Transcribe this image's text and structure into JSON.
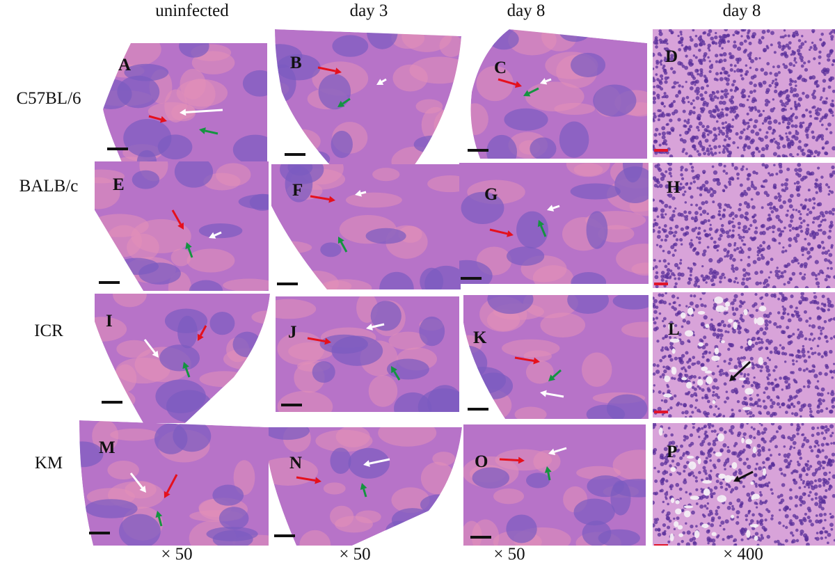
{
  "columns": {
    "uninfected": "uninfected",
    "day3": "day 3",
    "day8": "day 8",
    "day8_high": "day 8"
  },
  "rows": {
    "c57": "C57BL/6",
    "balb": "BALB/c",
    "icr": "ICR",
    "km": "KM"
  },
  "magnifications": {
    "col1": "× 50",
    "col2": "× 50",
    "col3": "× 50",
    "col4": "× 400"
  },
  "panels": {
    "A": "A",
    "B": "B",
    "C": "C",
    "D": "D",
    "E": "E",
    "F": "F",
    "G": "G",
    "H": "H",
    "I": "I",
    "J": "J",
    "K": "K",
    "L": "L",
    "M": "M",
    "N": "N",
    "O": "O",
    "P": "P"
  },
  "colors": {
    "tissue": "#b773c8",
    "tissue_light": "#d8a3d9",
    "pulp_red": "#e48fb8",
    "white_pulp": "#7b5bc0",
    "scale_bar_low": "#111111",
    "scale_bar_high": "#e0142a",
    "arrow_red": "#e5101c",
    "arrow_green": "#149440",
    "arrow_white": "#ffffff",
    "arrow_black": "#111111"
  }
}
